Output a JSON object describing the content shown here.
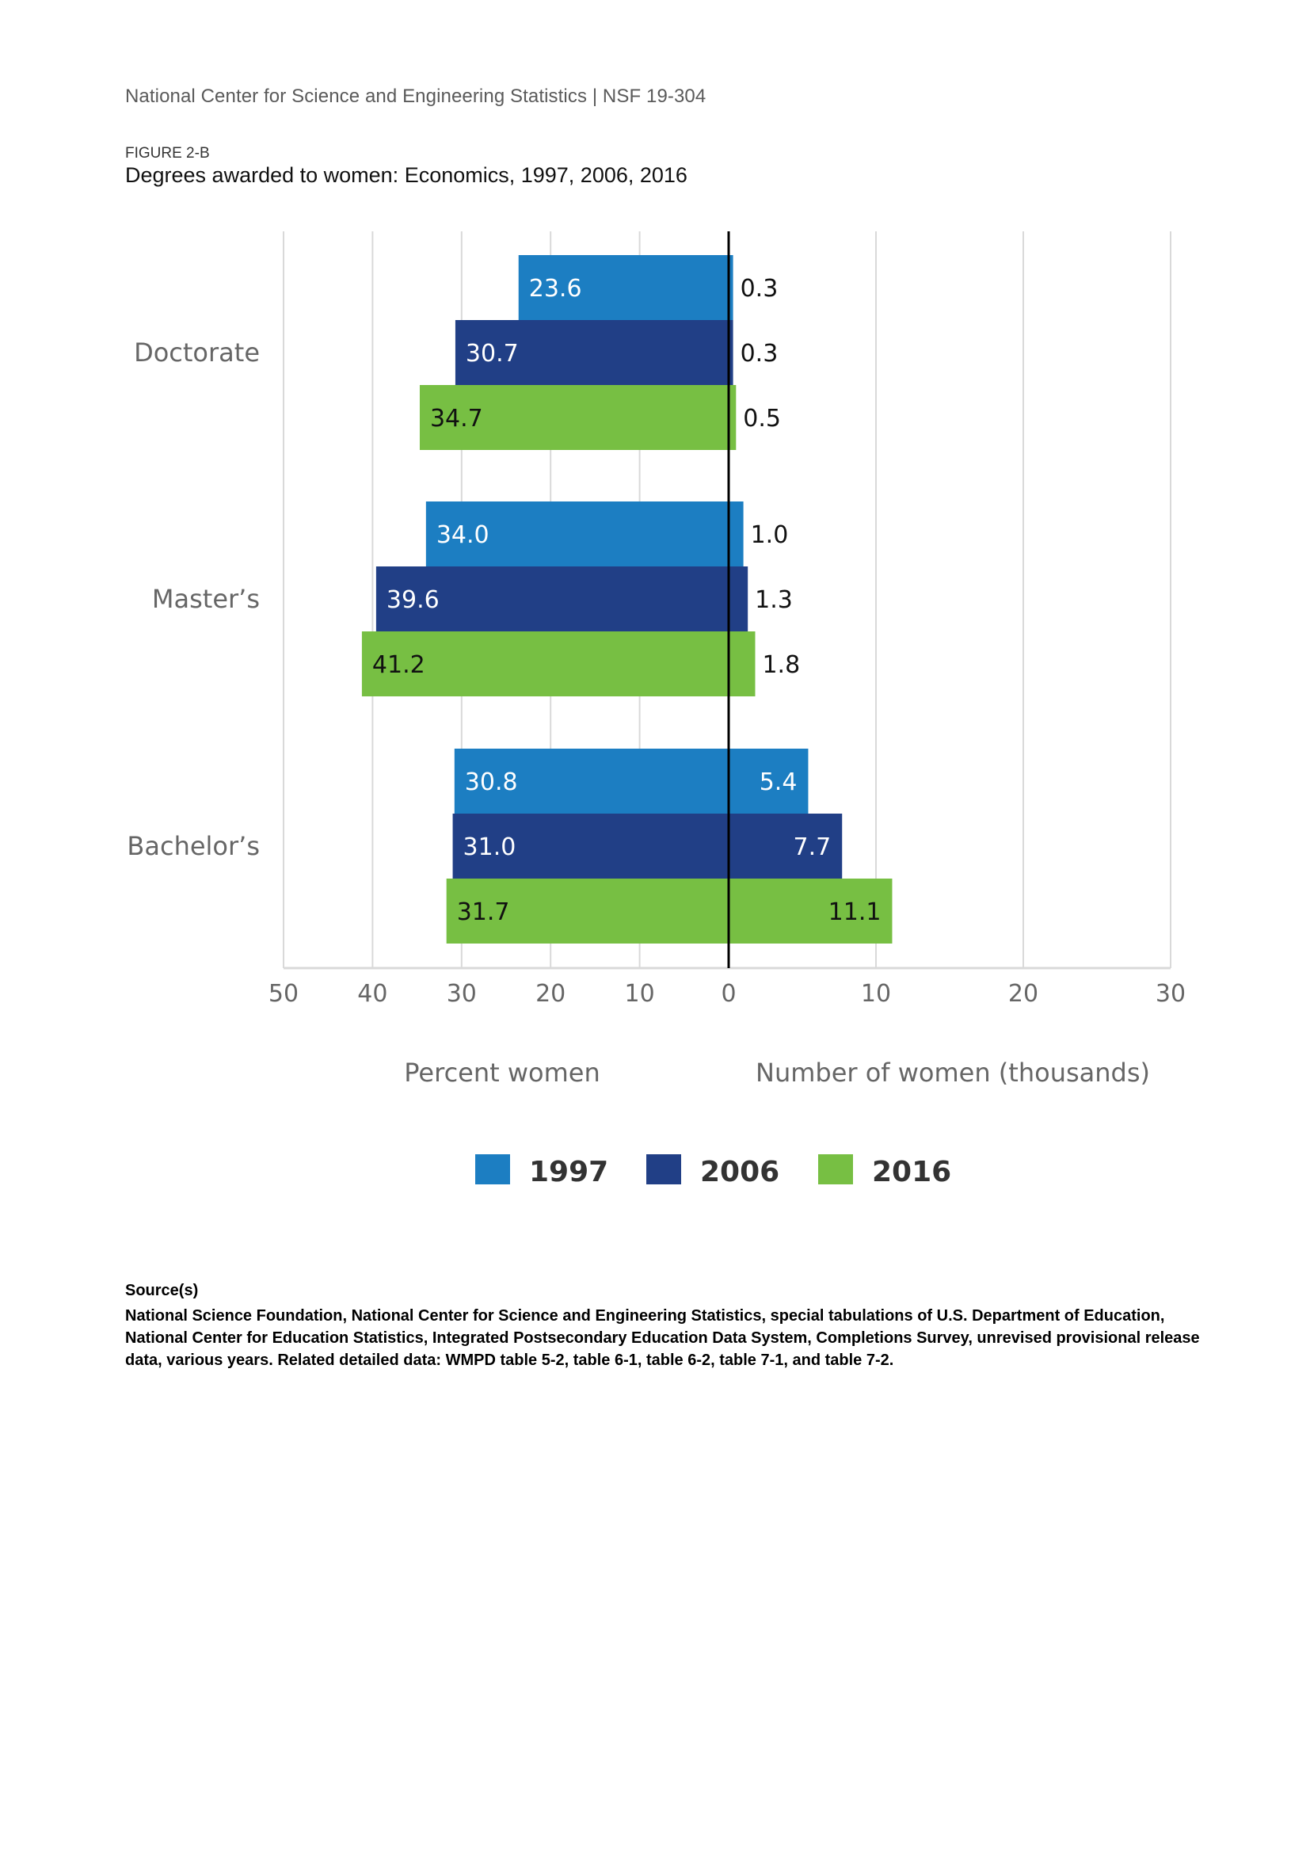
{
  "header": {
    "org_line": "National Center for Science and Engineering Statistics  |  NSF 19-304",
    "figure_label": "FIGURE 2-B",
    "figure_title": "Degrees awarded to women: Economics, 1997, 2006, 2016"
  },
  "chart_data": {
    "type": "bar",
    "orientation": "horizontal-diverging",
    "title": "Degrees awarded to women: Economics, 1997, 2006, 2016",
    "categories": [
      "Doctorate",
      "Master’s",
      "Bachelor’s"
    ],
    "series": [
      {
        "name": "1997",
        "color": "#1c7ec2",
        "percent_women": [
          23.6,
          34.0,
          30.8
        ],
        "number_thousands": [
          0.3,
          1.0,
          5.4
        ],
        "percent_labels": [
          "23.6",
          "34.0",
          "30.8"
        ],
        "number_labels": [
          "0.3",
          "1.0",
          "5.4"
        ]
      },
      {
        "name": "2006",
        "color": "#213f86",
        "percent_women": [
          30.7,
          39.6,
          31.0
        ],
        "number_thousands": [
          0.3,
          1.3,
          7.7
        ],
        "percent_labels": [
          "30.7",
          "39.6",
          "31.0"
        ],
        "number_labels": [
          "0.3",
          "1.3",
          "7.7"
        ]
      },
      {
        "name": "2016",
        "color": "#77bf43",
        "percent_women": [
          34.7,
          41.2,
          31.7
        ],
        "number_thousands": [
          0.5,
          1.8,
          11.1
        ],
        "percent_labels": [
          "34.7",
          "41.2",
          "31.7"
        ],
        "number_labels": [
          "0.5",
          "1.8",
          "11.1"
        ]
      }
    ],
    "left_axis": {
      "title": "Percent women",
      "range": [
        50,
        0
      ],
      "ticks": [
        50,
        40,
        30,
        20,
        10,
        0
      ],
      "tick_labels": [
        "50",
        "40",
        "30",
        "20",
        "10",
        "0"
      ]
    },
    "right_axis": {
      "title": "Number of women (thousands)",
      "range": [
        0,
        30
      ],
      "ticks": [
        10,
        20,
        30
      ],
      "tick_labels": [
        "10",
        "20",
        "30"
      ]
    },
    "grid": true,
    "legend": {
      "placement": "bottom-center",
      "entries": [
        "1997",
        "2006",
        "2016"
      ]
    }
  },
  "source": {
    "heading": "Source(s)",
    "text": "National Science Foundation, National Center for Science and Engineering Statistics, special tabulations of U.S. Department of Education, National Center for Education Statistics, Integrated Postsecondary Education Data System, Completions Survey, unrevised provisional release data, various years. Related detailed data: WMPD table 5-2, table 6-1, table 6-2, table 7-1, and table 7-2."
  }
}
